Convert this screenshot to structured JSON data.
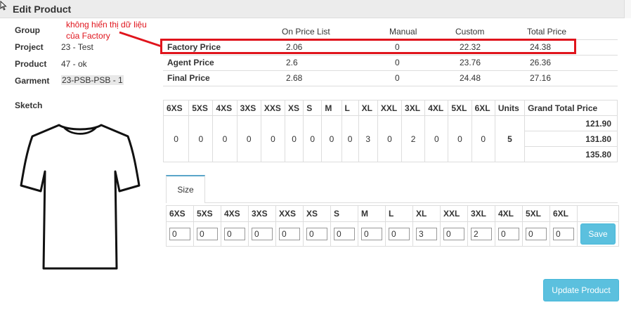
{
  "header": {
    "title": "Edit Product"
  },
  "fields": {
    "group_label": "Group",
    "project_label": "Project",
    "project_value": "23 - Test",
    "product_label": "Product",
    "product_value": "47 - ok",
    "garment_label": "Garment",
    "garment_value": "23-PSB-PSB - 1",
    "sketch_label": "Sketch"
  },
  "annotation": {
    "line1": "không hiển thị dữ liệu",
    "line2": "của Factory",
    "color": "#e0141c"
  },
  "prices": {
    "headers": [
      "",
      "On Price List",
      "Manual",
      "Custom",
      "Total Price"
    ],
    "rows": [
      {
        "label": "Factory Price",
        "on_price_list": "2.06",
        "manual": "0",
        "custom": "22.32",
        "total": "24.38"
      },
      {
        "label": "Agent Price",
        "on_price_list": "2.6",
        "manual": "0",
        "custom": "23.76",
        "total": "26.36"
      },
      {
        "label": "Final Price",
        "on_price_list": "2.68",
        "manual": "0",
        "custom": "24.48",
        "total": "27.16"
      }
    ]
  },
  "quantities": {
    "headers": [
      "6XS",
      "5XS",
      "4XS",
      "3XS",
      "XXS",
      "XS",
      "S",
      "M",
      "L",
      "XL",
      "XXL",
      "3XL",
      "4XL",
      "5XL",
      "6XL",
      "Units",
      "Grand Total Price"
    ],
    "values": [
      "0",
      "0",
      "0",
      "0",
      "0",
      "0",
      "0",
      "0",
      "0",
      "3",
      "0",
      "2",
      "0",
      "0",
      "0"
    ],
    "units": "5",
    "grand_totals": [
      "121.90",
      "131.80",
      "135.80"
    ]
  },
  "size_tab": {
    "label": "Size"
  },
  "size_inputs": {
    "headers": [
      "6XS",
      "5XS",
      "4XS",
      "3XS",
      "XXS",
      "XS",
      "S",
      "M",
      "L",
      "XL",
      "XXL",
      "3XL",
      "4XL",
      "5XL",
      "6XL"
    ],
    "values": [
      "0",
      "0",
      "0",
      "0",
      "0",
      "0",
      "0",
      "0",
      "0",
      "3",
      "0",
      "2",
      "0",
      "0",
      "0"
    ],
    "save_label": "Save"
  },
  "actions": {
    "update_label": "Update Product"
  },
  "colors": {
    "accent": "#5bc0de",
    "highlight": "#e0141c",
    "header_bg": "#ececec"
  }
}
